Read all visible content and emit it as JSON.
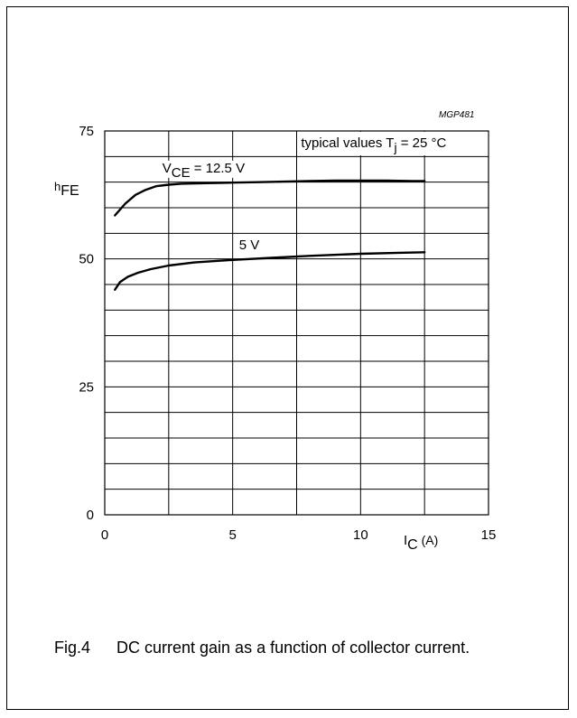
{
  "figure": {
    "code": "MGP481",
    "number": "Fig.4",
    "caption": "DC current gain as a function of collector current."
  },
  "chart_data": {
    "type": "line",
    "title": "",
    "annotation": {
      "text": "typical values T",
      "sub": "j",
      "suffix": " = 25 °C"
    },
    "xlabel": {
      "main": "I",
      "sub": "C",
      "unit": " (A)"
    },
    "ylabel": {
      "main": "h",
      "sub": "FE"
    },
    "xlim": [
      0,
      15
    ],
    "ylim": [
      0,
      75
    ],
    "x_ticks": [
      "0",
      "5",
      "10",
      "15"
    ],
    "y_ticks": [
      "0",
      "25",
      "50",
      "75"
    ],
    "grid": true,
    "series": [
      {
        "label": {
          "main": "V",
          "sub": "CE",
          "suffix": " = 12.5 V"
        },
        "points": [
          [
            0.4,
            58.5
          ],
          [
            0.8,
            60.8
          ],
          [
            1.2,
            62.5
          ],
          [
            1.6,
            63.5
          ],
          [
            2.0,
            64.2
          ],
          [
            2.5,
            64.5
          ],
          [
            3.0,
            64.7
          ],
          [
            4.0,
            64.8
          ],
          [
            5.0,
            64.9
          ],
          [
            6.0,
            65.0
          ],
          [
            7.0,
            65.1
          ],
          [
            8.0,
            65.2
          ],
          [
            9.0,
            65.3
          ],
          [
            10.0,
            65.3
          ],
          [
            11.0,
            65.3
          ],
          [
            12.0,
            65.2
          ],
          [
            12.5,
            65.2
          ]
        ]
      },
      {
        "label": {
          "main": "5 V",
          "sub": "",
          "suffix": ""
        },
        "points": [
          [
            0.4,
            44.0
          ],
          [
            0.6,
            45.5
          ],
          [
            0.9,
            46.5
          ],
          [
            1.3,
            47.3
          ],
          [
            1.8,
            48.0
          ],
          [
            2.5,
            48.7
          ],
          [
            3.5,
            49.3
          ],
          [
            5.0,
            49.8
          ],
          [
            6.5,
            50.2
          ],
          [
            8.0,
            50.6
          ],
          [
            10.0,
            51.0
          ],
          [
            11.5,
            51.2
          ],
          [
            12.5,
            51.3
          ]
        ]
      }
    ]
  }
}
